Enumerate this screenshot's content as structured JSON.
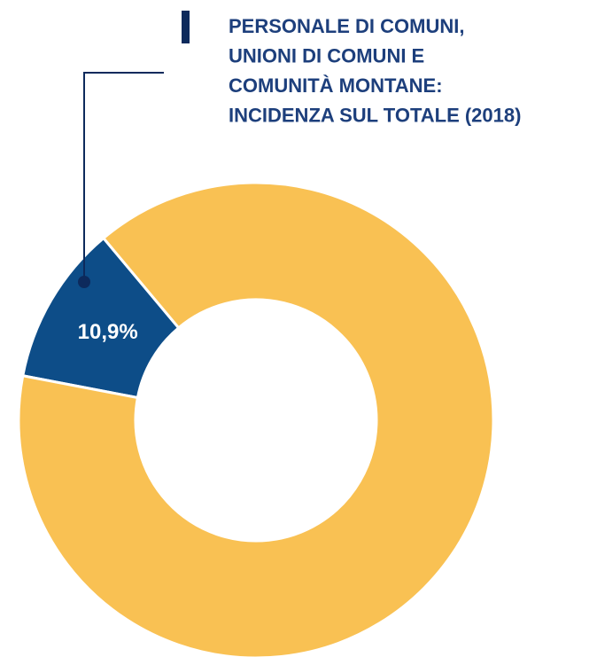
{
  "chart_data": {
    "type": "donut",
    "title": [
      "PERSONALE DI COMUNI,",
      "UNIONI DI COMUNI E",
      "COMUNITÀ MONTANE:",
      "INCIDENZA SUL TOTALE (2018)"
    ],
    "values": [
      10.9,
      89.1
    ],
    "value_labels": [
      "10,9%",
      null
    ],
    "colors": [
      "#0d4d88",
      "#f9c153"
    ]
  }
}
